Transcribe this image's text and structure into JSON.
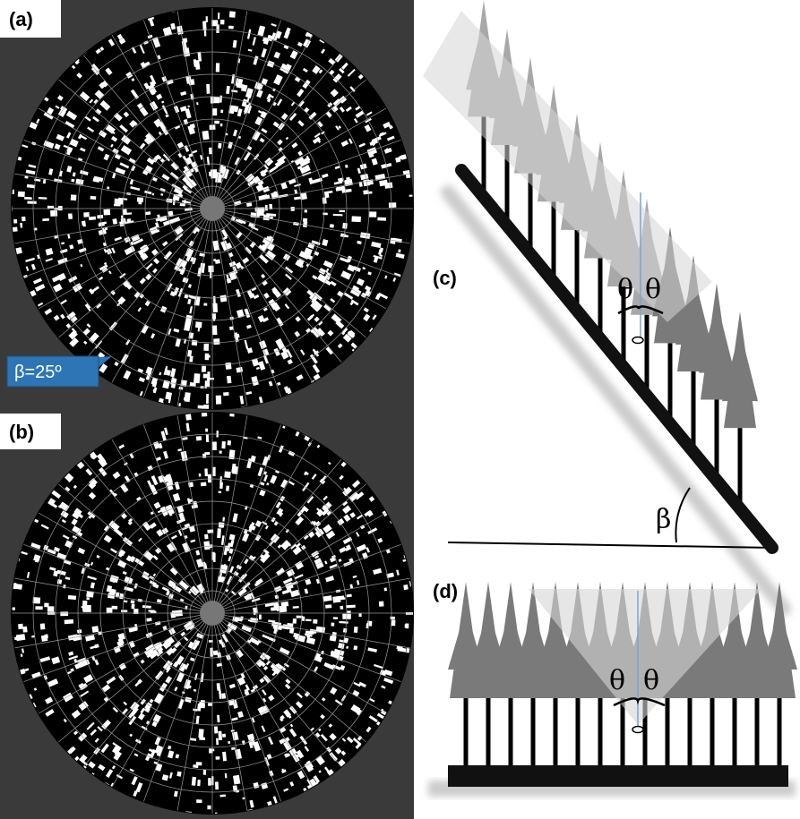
{
  "panels": {
    "a": {
      "label": "(a)",
      "callout": "β=25º"
    },
    "b": {
      "label": "(b)"
    },
    "c": {
      "label": "(c)",
      "theta_left": "θ",
      "theta_right": "θ",
      "beta": "β"
    },
    "d": {
      "label": "(d)",
      "theta_left": "θ",
      "theta_right": "θ"
    }
  }
}
